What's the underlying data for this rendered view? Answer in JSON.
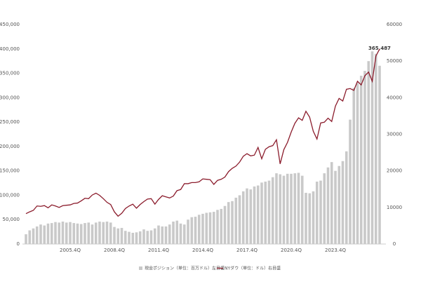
{
  "chart_data": {
    "type": "bar-line",
    "categories": [
      null,
      null,
      null,
      null,
      null,
      null,
      null,
      null,
      null,
      null,
      null,
      null,
      "2005.4Q",
      null,
      null,
      null,
      null,
      null,
      null,
      null,
      null,
      null,
      null,
      null,
      "2008.4Q",
      null,
      null,
      null,
      null,
      null,
      null,
      null,
      null,
      null,
      null,
      null,
      "2011.4Q",
      null,
      null,
      null,
      null,
      null,
      null,
      null,
      null,
      null,
      null,
      null,
      "2014.4Q",
      null,
      null,
      null,
      null,
      null,
      null,
      null,
      null,
      null,
      null,
      null,
      "2017.4Q",
      null,
      null,
      null,
      null,
      null,
      null,
      null,
      null,
      null,
      null,
      null,
      "2020.4Q",
      null,
      null,
      null,
      null,
      null,
      null,
      null,
      null,
      null,
      null,
      null,
      "2023.4Q",
      null,
      null,
      null,
      null,
      null,
      null,
      null,
      null,
      null,
      null,
      null,
      null
    ],
    "series": [
      {
        "name": "現金ポジション（単位：百万ドル）左目盛",
        "type": "bar",
        "color": "#c9c9c9",
        "values": [
          20000,
          28000,
          32000,
          36000,
          40000,
          38000,
          42000,
          43000,
          45000,
          44000,
          46000,
          44000,
          45000,
          43000,
          42000,
          41000,
          43000,
          44000,
          40000,
          44000,
          46000,
          45000,
          46000,
          44000,
          35000,
          32000,
          33000,
          27000,
          25000,
          23000,
          24000,
          26000,
          30000,
          27000,
          28000,
          32000,
          38000,
          36000,
          36000,
          40000,
          46000,
          48000,
          42000,
          40000,
          50000,
          55000,
          56000,
          60000,
          62000,
          64000,
          65000,
          66000,
          70000,
          72000,
          78000,
          86000,
          88000,
          95000,
          100000,
          108000,
          114000,
          112000,
          118000,
          120000,
          126000,
          128000,
          130000,
          137000,
          145000,
          143000,
          140000,
          144000,
          144000,
          145000,
          146000,
          140000,
          105000,
          104000,
          108000,
          128000,
          130000,
          145000,
          157000,
          168000,
          150000,
          160000,
          170000,
          190000,
          255000,
          320000,
          330000,
          345000,
          355000,
          375000,
          395000,
          390000,
          365487
        ],
        "value_labels": [
          null,
          null,
          null,
          null,
          null,
          null,
          null,
          null,
          null,
          null,
          null,
          null,
          null,
          null,
          null,
          null,
          null,
          null,
          null,
          null,
          null,
          null,
          null,
          null,
          null,
          null,
          null,
          null,
          null,
          null,
          null,
          null,
          null,
          null,
          null,
          null,
          null,
          null,
          null,
          null,
          null,
          null,
          null,
          null,
          null,
          null,
          null,
          null,
          null,
          null,
          null,
          null,
          null,
          null,
          null,
          null,
          null,
          null,
          null,
          null,
          null,
          null,
          null,
          null,
          null,
          null,
          null,
          null,
          null,
          null,
          null,
          null,
          null,
          null,
          null,
          null,
          null,
          null,
          null,
          null,
          null,
          null,
          null,
          null,
          null,
          null,
          null,
          null,
          null,
          null,
          null,
          null,
          null,
          null,
          null,
          null,
          "365,487"
        ]
      },
      {
        "name": "NYダウ（単位：ドル）右目盛",
        "type": "line",
        "axis": "y2",
        "color": "#8b1c2c",
        "values": [
          8300,
          8800,
          9200,
          10400,
          10300,
          10500,
          9900,
          10700,
          10400,
          10000,
          10500,
          10600,
          10700,
          11100,
          11200,
          11800,
          12500,
          12400,
          13400,
          13900,
          13300,
          12400,
          11400,
          10800,
          8800,
          7600,
          8400,
          9700,
          10400,
          10900,
          9800,
          10800,
          11600,
          12300,
          12400,
          10900,
          12200,
          13200,
          12900,
          12600,
          13100,
          14600,
          14900,
          16500,
          16500,
          16800,
          16800,
          17000,
          17800,
          17700,
          17600,
          16300,
          17400,
          17700,
          18300,
          19800,
          20700,
          21300,
          22400,
          24000,
          24700,
          24100,
          24300,
          26400,
          23300,
          25900,
          26600,
          26900,
          28500,
          21900,
          25800,
          27800,
          30600,
          33000,
          34500,
          33800,
          36300,
          34700,
          30800,
          28700,
          33100,
          33300,
          34400,
          33500,
          37700,
          39800,
          39100,
          42300,
          42500,
          42000,
          44500,
          43500,
          46000,
          47000,
          44500,
          51400,
          53300
        ]
      }
    ],
    "ylim": [
      0,
      450000
    ],
    "yticks": [
      0,
      {
        "value": 50000,
        "label": "50,000"
      },
      {
        "value": 100000,
        "label": "100,000"
      },
      {
        "value": 150000,
        "label": "150,000"
      },
      {
        "value": 200000,
        "label": "200,000"
      },
      {
        "value": 250000,
        "label": "250,000"
      },
      {
        "value": 300000,
        "label": "300,000"
      },
      {
        "value": 350000,
        "label": "350,000"
      },
      {
        "value": 400000,
        "label": "400,000"
      },
      {
        "value": 450000,
        "label": "450,000"
      }
    ],
    "y2lim": [
      0,
      60000
    ],
    "y2ticks": [
      0,
      10000,
      20000,
      30000,
      40000,
      50000,
      60000
    ]
  }
}
